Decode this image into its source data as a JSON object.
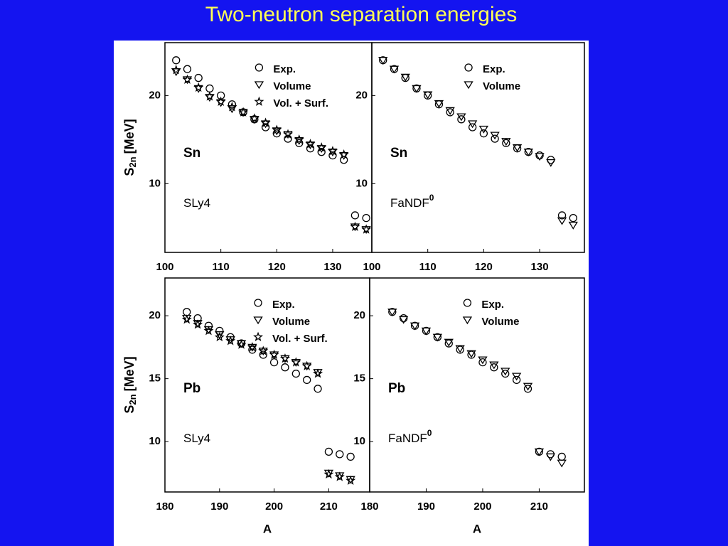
{
  "slide": {
    "title": "Two-neutron separation energies"
  },
  "chart_data": [
    {
      "type": "scatter",
      "x": [
        102,
        104,
        106,
        108,
        110,
        112,
        114,
        116,
        118,
        120,
        122,
        124,
        126,
        128,
        130,
        132,
        134,
        136
      ],
      "series": [
        {
          "name": "Exp.",
          "marker": "circle",
          "color": "#000000",
          "values": [
            24.0,
            23.0,
            22.0,
            20.8,
            20.0,
            19.0,
            18.1,
            17.3,
            16.4,
            15.7,
            15.1,
            14.6,
            14.0,
            13.6,
            13.2,
            12.7,
            6.4,
            6.1
          ]
        },
        {
          "name": "Volume",
          "marker": "triangle-down",
          "color": "#000000",
          "values": [
            22.7,
            21.8,
            20.8,
            19.8,
            19.2,
            18.5,
            18.1,
            17.3,
            16.8,
            16.0,
            15.6,
            14.9,
            14.4,
            14.0,
            13.6,
            13.2,
            5.1,
            4.8
          ]
        },
        {
          "name": "Vol. + Surf.",
          "marker": "star",
          "color": "#000000",
          "values": [
            22.9,
            21.8,
            20.9,
            19.9,
            19.3,
            18.7,
            18.1,
            17.4,
            16.9,
            16.1,
            15.6,
            15.0,
            14.5,
            14.1,
            13.7,
            13.3,
            5.1,
            4.8
          ]
        }
      ],
      "xlim": [
        100,
        137
      ],
      "ylim": [
        2.2,
        26
      ],
      "xticks": [
        100,
        110,
        120,
        130
      ],
      "yticks": [
        10,
        20
      ],
      "y_label_symbol": "S",
      "y_label_subscript": "2n",
      "y_label_unit": "[MeV]",
      "nucleus": "Sn",
      "functional": "SLy4",
      "legend": "upper right"
    },
    {
      "type": "scatter",
      "x": [
        102,
        104,
        106,
        108,
        110,
        112,
        114,
        116,
        118,
        120,
        122,
        124,
        126,
        128,
        130,
        132,
        134,
        136
      ],
      "series": [
        {
          "name": "Exp.",
          "marker": "circle",
          "color": "#000000",
          "values": [
            24.0,
            23.0,
            22.0,
            20.8,
            20.0,
            19.0,
            18.1,
            17.3,
            16.4,
            15.7,
            15.1,
            14.6,
            14.0,
            13.6,
            13.2,
            12.7,
            6.4,
            6.1
          ]
        },
        {
          "name": "Volume",
          "marker": "triangle-down",
          "color": "#000000",
          "values": [
            24.0,
            23.0,
            22.1,
            20.8,
            20.1,
            19.1,
            18.3,
            17.6,
            16.8,
            16.2,
            15.5,
            14.8,
            14.1,
            13.6,
            13.1,
            12.4,
            5.8,
            5.3
          ]
        }
      ],
      "xlim": [
        100,
        138
      ],
      "ylim": [
        2.2,
        26
      ],
      "xticks": [
        100,
        110,
        120,
        130
      ],
      "yticks": [
        10,
        20
      ],
      "nucleus": "Sn",
      "functional": "FaNDF",
      "functional_superscript": "0",
      "legend": "upper right"
    },
    {
      "type": "scatter",
      "x": [
        184,
        186,
        188,
        190,
        192,
        194,
        196,
        198,
        200,
        202,
        204,
        206,
        208,
        210,
        212,
        214
      ],
      "series": [
        {
          "name": "Exp.",
          "marker": "circle",
          "color": "#000000",
          "values": [
            20.3,
            19.8,
            19.2,
            18.8,
            18.3,
            17.8,
            17.3,
            16.9,
            16.3,
            15.9,
            15.4,
            14.9,
            14.2,
            9.2,
            9.0,
            8.8
          ]
        },
        {
          "name": "Volume",
          "marker": "triangle-down",
          "color": "#000000",
          "values": [
            19.8,
            19.4,
            18.9,
            18.5,
            18.1,
            17.8,
            17.5,
            17.2,
            16.9,
            16.6,
            16.3,
            16.0,
            15.5,
            7.5,
            7.3,
            7.0
          ]
        },
        {
          "name": "Vol. + Surf.",
          "marker": "star",
          "color": "#000000",
          "values": [
            19.7,
            19.3,
            18.8,
            18.3,
            18.0,
            17.7,
            17.5,
            17.2,
            16.9,
            16.6,
            16.3,
            16.0,
            15.4,
            7.4,
            7.2,
            6.9
          ]
        }
      ],
      "xlim": [
        180,
        217.5
      ],
      "ylim": [
        6,
        23
      ],
      "xticks": [
        180,
        190,
        200,
        210
      ],
      "yticks": [
        10,
        15,
        20
      ],
      "x_label": "A",
      "y_label_symbol": "S",
      "y_label_subscript": "2n",
      "y_label_unit": "[MeV]",
      "nucleus": "Pb",
      "functional": "SLy4",
      "legend": "upper right"
    },
    {
      "type": "scatter",
      "x": [
        184,
        186,
        188,
        190,
        192,
        194,
        196,
        198,
        200,
        202,
        204,
        206,
        208,
        210,
        212,
        214
      ],
      "series": [
        {
          "name": "Exp.",
          "marker": "circle",
          "color": "#000000",
          "values": [
            20.3,
            19.8,
            19.2,
            18.8,
            18.3,
            17.8,
            17.3,
            16.9,
            16.3,
            15.9,
            15.4,
            14.9,
            14.2,
            9.2,
            9.0,
            8.8
          ]
        },
        {
          "name": "Volume",
          "marker": "triangle-down",
          "color": "#000000",
          "values": [
            20.3,
            19.7,
            19.2,
            18.8,
            18.3,
            17.9,
            17.4,
            17.0,
            16.5,
            16.1,
            15.6,
            15.2,
            14.4,
            9.2,
            8.8,
            8.3
          ]
        }
      ],
      "xlim": [
        180,
        218
      ],
      "ylim": [
        6,
        23
      ],
      "xticks": [
        180,
        190,
        200,
        210
      ],
      "yticks": [
        10,
        15,
        20
      ],
      "x_label": "A",
      "nucleus": "Pb",
      "functional": "FaNDF",
      "functional_superscript": "0",
      "legend": "upper right"
    }
  ]
}
